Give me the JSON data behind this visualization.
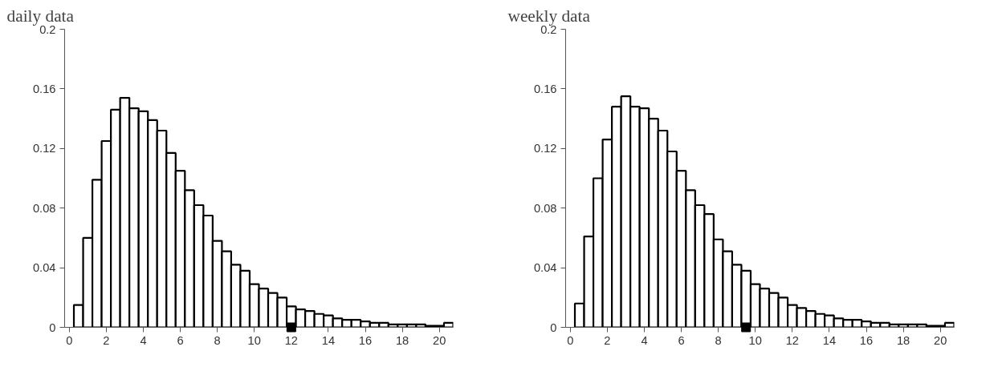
{
  "chart_data": [
    {
      "type": "histogram",
      "title": "daily data",
      "bins": [
        0.25,
        0.75,
        1.25,
        1.75,
        2.25,
        2.75,
        3.25,
        3.75,
        4.25,
        4.75,
        5.25,
        5.75,
        6.25,
        6.75,
        7.25,
        7.75,
        8.25,
        8.75,
        9.25,
        9.75,
        10.25,
        10.75,
        11.25,
        11.75,
        12.25,
        12.75,
        13.25,
        13.75,
        14.25,
        14.75,
        15.25,
        15.75,
        16.25,
        16.75,
        17.25,
        17.75,
        18.25,
        18.75,
        19.25,
        19.75,
        20.25,
        20.75
      ],
      "values": [
        0.015,
        0.06,
        0.099,
        0.125,
        0.146,
        0.154,
        0.147,
        0.145,
        0.139,
        0.132,
        0.117,
        0.105,
        0.092,
        0.082,
        0.075,
        0.058,
        0.051,
        0.042,
        0.038,
        0.029,
        0.026,
        0.023,
        0.02,
        0.014,
        0.012,
        0.011,
        0.009,
        0.008,
        0.006,
        0.005,
        0.005,
        0.004,
        0.003,
        0.003,
        0.002,
        0.002,
        0.002,
        0.002,
        0.001,
        0.001,
        0.003
      ],
      "color": "#ffffff",
      "series": [
        {
          "type": "scatter",
          "x": [
            12
          ],
          "values": [
            0
          ],
          "color": "#000000"
        }
      ],
      "marker": "square",
      "grid": false,
      "xlim": [
        -0.25,
        20.75
      ],
      "ylim": [
        0,
        0.2
      ],
      "xticks": [
        0,
        2,
        4,
        6,
        8,
        10,
        12,
        14,
        16,
        18,
        20
      ],
      "yticks": [
        0,
        0.04,
        0.08,
        0.12,
        0.16,
        0.2
      ]
    },
    {
      "type": "histogram",
      "title": "weekly data",
      "bins": [
        0.25,
        0.75,
        1.25,
        1.75,
        2.25,
        2.75,
        3.25,
        3.75,
        4.25,
        4.75,
        5.25,
        5.75,
        6.25,
        6.75,
        7.25,
        7.75,
        8.25,
        8.75,
        9.25,
        9.75,
        10.25,
        10.75,
        11.25,
        11.75,
        12.25,
        12.75,
        13.25,
        13.75,
        14.25,
        14.75,
        15.25,
        15.75,
        16.25,
        16.75,
        17.25,
        17.75,
        18.25,
        18.75,
        19.25,
        19.75,
        20.25,
        20.75
      ],
      "values": [
        0.016,
        0.061,
        0.1,
        0.126,
        0.148,
        0.155,
        0.148,
        0.147,
        0.14,
        0.132,
        0.118,
        0.105,
        0.092,
        0.082,
        0.076,
        0.059,
        0.051,
        0.042,
        0.038,
        0.029,
        0.026,
        0.023,
        0.02,
        0.015,
        0.013,
        0.011,
        0.009,
        0.008,
        0.006,
        0.005,
        0.005,
        0.004,
        0.003,
        0.003,
        0.002,
        0.002,
        0.002,
        0.002,
        0.001,
        0.001,
        0.003
      ],
      "color": "#ffffff",
      "series": [
        {
          "type": "scatter",
          "x": [
            9.5
          ],
          "values": [
            0
          ],
          "color": "#000000"
        }
      ],
      "marker": "square",
      "grid": false,
      "xlim": [
        -0.25,
        20.75
      ],
      "ylim": [
        0,
        0.2
      ],
      "xticks": [
        0,
        2,
        4,
        6,
        8,
        10,
        12,
        14,
        16,
        18,
        20
      ],
      "yticks": [
        0,
        0.04,
        0.08,
        0.12,
        0.16,
        0.2
      ]
    }
  ]
}
